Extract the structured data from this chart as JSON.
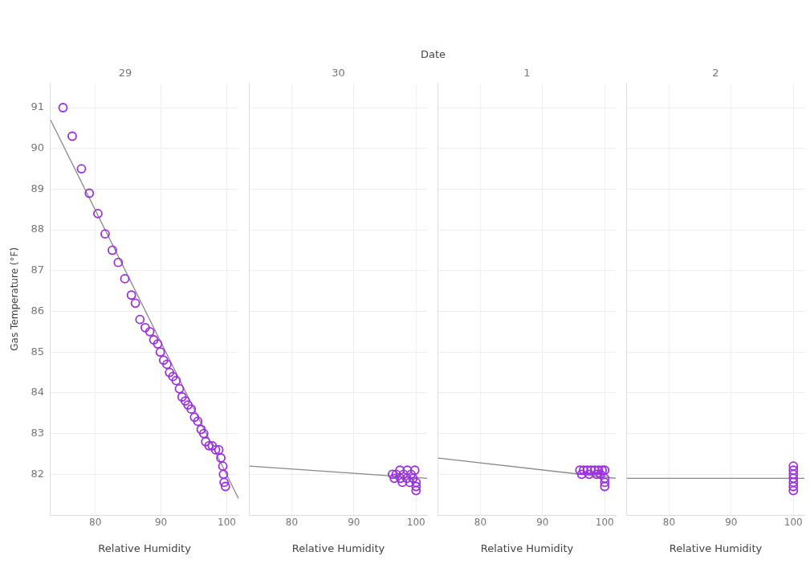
{
  "chart_data": [
    {
      "type": "scatter",
      "subtitle": "29",
      "annotations": [
        "Date"
      ],
      "xlabel": "Relative Humidity",
      "ylabel": "Gas Temperature (°F)",
      "xlim": [
        73.2,
        101.8
      ],
      "xticks": [
        80,
        90,
        100
      ],
      "ylim": [
        81,
        91.6
      ],
      "yticks": [
        82,
        83,
        84,
        85,
        86,
        87,
        88,
        89,
        90,
        91
      ],
      "grid": true,
      "series": [
        {
          "color": "#9b30e0",
          "marker": "circle",
          "x": [
            75.1,
            76.5,
            77.9,
            79.1,
            80.4,
            81.5,
            82.6,
            83.5,
            84.5,
            85.5,
            86.1,
            86.8,
            87.6,
            88.3,
            88.9,
            89.5,
            89.9,
            90.4,
            90.9,
            91.3,
            91.8,
            92.3,
            92.8,
            93.2,
            93.7,
            94.1,
            94.6,
            95.1,
            95.6,
            96.1,
            96.5,
            96.8,
            97.3,
            97.8,
            98.3,
            98.8,
            99.1,
            99.4,
            99.5,
            99.6,
            99.8
          ],
          "values": [
            91.0,
            90.3,
            89.5,
            88.9,
            88.4,
            87.9,
            87.5,
            87.2,
            86.8,
            86.4,
            86.2,
            85.8,
            85.6,
            85.5,
            85.3,
            85.2,
            85.0,
            84.8,
            84.7,
            84.5,
            84.4,
            84.3,
            84.1,
            83.9,
            83.8,
            83.7,
            83.6,
            83.4,
            83.3,
            83.1,
            83.0,
            82.8,
            82.7,
            82.7,
            82.6,
            82.6,
            82.4,
            82.2,
            82.0,
            81.8,
            81.7
          ]
        },
        {
          "type": "line",
          "color": "#888888",
          "marker": "none",
          "x": [
            73.2,
            101.8
          ],
          "values": [
            90.7,
            81.4
          ]
        }
      ]
    },
    {
      "type": "scatter",
      "subtitle": "30",
      "xlabel": "Relative Humidity",
      "xlim": [
        73.2,
        101.8
      ],
      "xticks": [
        80,
        90,
        100
      ],
      "ylim": [
        81,
        91.6
      ],
      "yticks": [
        82,
        83,
        84,
        85,
        86,
        87,
        88,
        89,
        90,
        91
      ],
      "grid": true,
      "tick_labels": "x",
      "series": [
        {
          "color": "#9b30e0",
          "marker": "circle",
          "x": [
            96.2,
            96.8,
            97.4,
            98.0,
            98.6,
            99.2,
            99.8,
            96.5,
            97.5,
            98.5,
            99.5,
            100,
            100,
            97.8,
            99.0,
            100
          ],
          "values": [
            82.0,
            82.0,
            82.1,
            82.0,
            82.1,
            82.0,
            82.1,
            81.9,
            81.9,
            81.9,
            81.9,
            81.8,
            81.7,
            81.8,
            81.8,
            81.6
          ]
        },
        {
          "type": "line",
          "color": "#888888",
          "marker": "none",
          "x": [
            73.2,
            101.8
          ],
          "values": [
            82.2,
            81.9
          ]
        }
      ]
    },
    {
      "type": "scatter",
      "subtitle": "1",
      "xlabel": "Relative Humidity",
      "xlim": [
        73.2,
        101.8
      ],
      "xticks": [
        80,
        90,
        100
      ],
      "ylim": [
        81,
        91.6
      ],
      "yticks": [
        82,
        83,
        84,
        85,
        86,
        87,
        88,
        89,
        90,
        91
      ],
      "grid": true,
      "tick_labels": "x",
      "series": [
        {
          "color": "#9b30e0",
          "marker": "circle",
          "x": [
            96.0,
            96.6,
            97.2,
            97.8,
            98.4,
            99.0,
            99.6,
            100,
            96.3,
            97.5,
            98.7,
            99.3,
            100,
            100,
            100
          ],
          "values": [
            82.1,
            82.1,
            82.1,
            82.1,
            82.1,
            82.1,
            82.1,
            82.1,
            82.0,
            82.0,
            82.0,
            82.0,
            81.9,
            81.8,
            81.7
          ]
        },
        {
          "type": "line",
          "color": "#888888",
          "marker": "none",
          "x": [
            73.2,
            101.8
          ],
          "values": [
            82.4,
            81.9
          ]
        }
      ]
    },
    {
      "type": "scatter",
      "subtitle": "2",
      "xlabel": "Relative Humidity",
      "xlim": [
        73.2,
        101.8
      ],
      "xticks": [
        80,
        90,
        100
      ],
      "ylim": [
        81,
        91.6
      ],
      "yticks": [
        82,
        83,
        84,
        85,
        86,
        87,
        88,
        89,
        90,
        91
      ],
      "grid": true,
      "tick_labels": "x",
      "series": [
        {
          "color": "#9b30e0",
          "marker": "circle",
          "x": [
            100,
            100,
            100,
            100,
            100,
            100,
            100
          ],
          "values": [
            82.2,
            82.1,
            82.0,
            81.9,
            81.8,
            81.7,
            81.6
          ]
        },
        {
          "type": "line",
          "color": "#888888",
          "marker": "none",
          "x": [
            73.2,
            101.8
          ],
          "values": [
            81.9,
            81.9
          ]
        }
      ]
    }
  ]
}
